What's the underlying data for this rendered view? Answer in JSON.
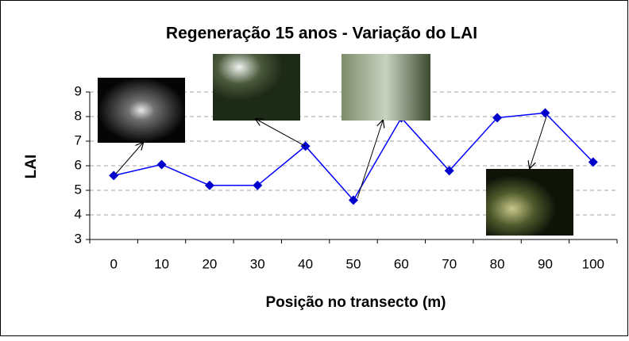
{
  "chart_data": {
    "type": "line",
    "title": "Regeneração 15 anos - Variação do LAI",
    "x_label": "Posição no transecto (m)",
    "y_label": "LAI",
    "categories": [
      "0",
      "10",
      "20",
      "30",
      "40",
      "50",
      "60",
      "70",
      "80",
      "90",
      "100"
    ],
    "values": [
      5.6,
      6.05,
      5.2,
      5.2,
      6.8,
      4.6,
      7.95,
      5.8,
      7.95,
      8.15,
      6.15
    ],
    "color": "#0000ff",
    "marker_color": "#0000cc",
    "ylim": [
      3,
      9
    ],
    "yticks": [
      3,
      4,
      5,
      6,
      7,
      8,
      9
    ],
    "grid": true
  }
}
